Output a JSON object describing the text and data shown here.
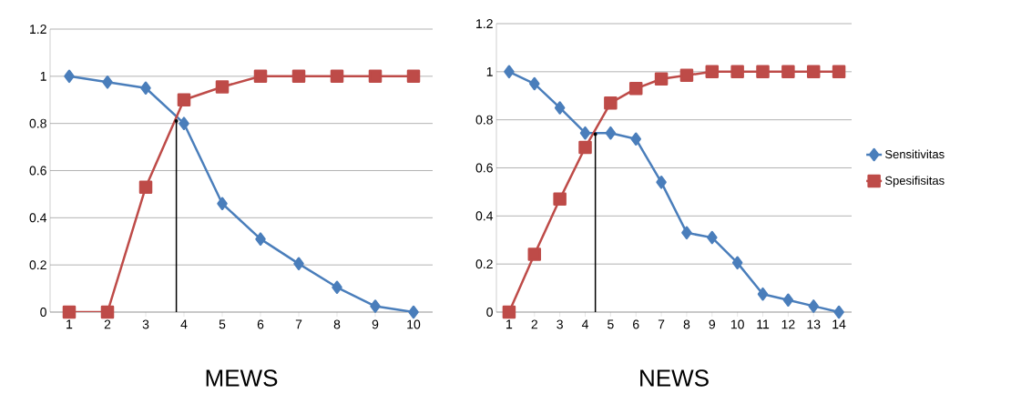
{
  "chart_data": [
    {
      "type": "line",
      "xlabel": "MEWS",
      "xlim": [
        0.5,
        10.5
      ],
      "ylim": [
        0,
        1.2
      ],
      "xticks": [
        1,
        2,
        3,
        4,
        5,
        6,
        7,
        8,
        9,
        10
      ],
      "yticks": [
        0,
        0.2,
        0.4,
        0.6,
        0.8,
        1,
        1.2
      ],
      "grid": "y",
      "legend": false,
      "x": [
        1,
        2,
        3,
        4,
        5,
        6,
        7,
        8,
        9,
        10
      ],
      "series": [
        {
          "color": "#4a7ebb",
          "marker": "diamond",
          "values": [
            1,
            0.975,
            0.95,
            0.8,
            0.46,
            0.31,
            0.205,
            0.105,
            0.025,
            0
          ]
        },
        {
          "color": "#be4b48",
          "marker": "square",
          "values": [
            0,
            0,
            0.53,
            0.9,
            0.955,
            1,
            1,
            1,
            1,
            1
          ]
        },
        {
          "type": "lollipop",
          "color": "#000000",
          "marker": "none",
          "x": [
            3.8
          ],
          "values": [
            0.81
          ]
        }
      ]
    },
    {
      "type": "line",
      "xlabel": "NEWS",
      "xlim": [
        0.5,
        14.5
      ],
      "ylim": [
        0,
        1.2
      ],
      "xticks": [
        1,
        2,
        3,
        4,
        5,
        6,
        7,
        8,
        9,
        10,
        11,
        12,
        13,
        14
      ],
      "yticks": [
        0,
        0.2,
        0.4,
        0.6,
        0.8,
        1,
        1.2
      ],
      "grid": "y",
      "legend": "right",
      "x": [
        1,
        2,
        3,
        4,
        5,
        6,
        7,
        8,
        9,
        10,
        11,
        12,
        13,
        14
      ],
      "series": [
        {
          "name": "Sensitivitas",
          "color": "#4a7ebb",
          "marker": "diamond",
          "values": [
            1,
            0.95,
            0.85,
            0.745,
            0.745,
            0.72,
            0.54,
            0.33,
            0.31,
            0.205,
            0.075,
            0.05,
            0.025,
            0
          ]
        },
        {
          "name": "Spesifisitas",
          "color": "#be4b48",
          "marker": "square",
          "values": [
            0,
            0.24,
            0.47,
            0.685,
            0.87,
            0.93,
            0.97,
            0.985,
            1,
            1,
            1,
            1,
            1,
            1
          ]
        },
        {
          "type": "lollipop",
          "color": "#000000",
          "marker": "none",
          "x": [
            4.4
          ],
          "values": [
            0.74
          ]
        }
      ]
    }
  ]
}
